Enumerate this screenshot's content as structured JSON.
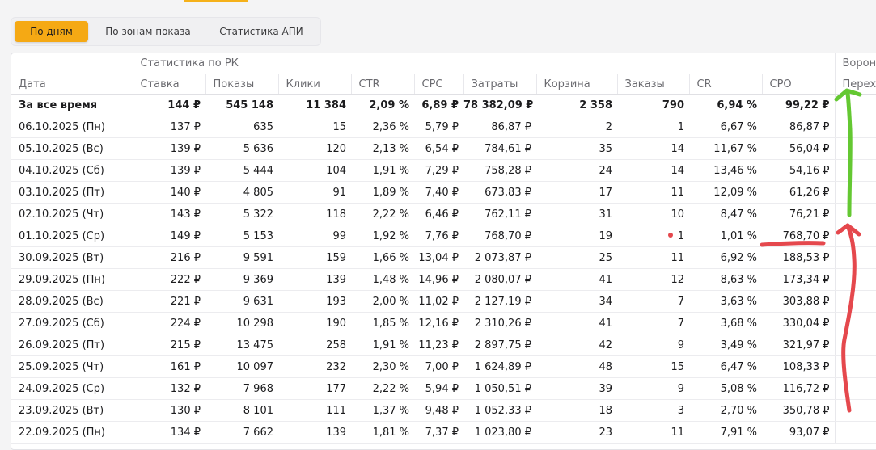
{
  "tabs": [
    {
      "label": "По дням",
      "active": true
    },
    {
      "label": "По зонам показа",
      "active": false
    },
    {
      "label": "Статистика АПИ",
      "active": false
    }
  ],
  "groups": {
    "stats": "Статистика по РК",
    "funnel": "Ворон"
  },
  "columns": [
    "Дата",
    "Ставка",
    "Показы",
    "Клики",
    "CTR",
    "CPC",
    "Затраты",
    "Корзина",
    "Заказы",
    "CR",
    "CPO",
    "Перех"
  ],
  "rows": [
    [
      "За все время",
      "144 ₽",
      "545 148",
      "11 384",
      "2,09 %",
      "6,89 ₽",
      "78 382,09 ₽",
      "2 358",
      "790",
      "6,94 %",
      "99,22 ₽"
    ],
    [
      "06.10.2025 (Пн)",
      "137 ₽",
      "635",
      "15",
      "2,36 %",
      "5,79 ₽",
      "86,87 ₽",
      "2",
      "1",
      "6,67 %",
      "86,87 ₽"
    ],
    [
      "05.10.2025 (Вс)",
      "139 ₽",
      "5 636",
      "120",
      "2,13 %",
      "6,54 ₽",
      "784,61 ₽",
      "35",
      "14",
      "11,67 %",
      "56,04 ₽"
    ],
    [
      "04.10.2025 (Сб)",
      "139 ₽",
      "5 444",
      "104",
      "1,91 %",
      "7,29 ₽",
      "758,28 ₽",
      "24",
      "14",
      "13,46 %",
      "54,16 ₽"
    ],
    [
      "03.10.2025 (Пт)",
      "140 ₽",
      "4 805",
      "91",
      "1,89 %",
      "7,40 ₽",
      "673,83 ₽",
      "17",
      "11",
      "12,09 %",
      "61,26 ₽"
    ],
    [
      "02.10.2025 (Чт)",
      "143 ₽",
      "5 322",
      "118",
      "2,22 %",
      "6,46 ₽",
      "762,11 ₽",
      "31",
      "10",
      "8,47 %",
      "76,21 ₽"
    ],
    [
      "01.10.2025 (Ср)",
      "149 ₽",
      "5 153",
      "99",
      "1,92 %",
      "7,76 ₽",
      "768,70 ₽",
      "19",
      "1",
      "1,01 %",
      "768,70 ₽"
    ],
    [
      "30.09.2025 (Вт)",
      "216 ₽",
      "9 591",
      "159",
      "1,66 %",
      "13,04 ₽",
      "2 073,87 ₽",
      "25",
      "11",
      "6,92 %",
      "188,53 ₽"
    ],
    [
      "29.09.2025 (Пн)",
      "222 ₽",
      "9 369",
      "139",
      "1,48 %",
      "14,96 ₽",
      "2 080,07 ₽",
      "41",
      "12",
      "8,63 %",
      "173,34 ₽"
    ],
    [
      "28.09.2025 (Вс)",
      "221 ₽",
      "9 631",
      "193",
      "2,00 %",
      "11,02 ₽",
      "2 127,19 ₽",
      "34",
      "7",
      "3,63 %",
      "303,88 ₽"
    ],
    [
      "27.09.2025 (Сб)",
      "224 ₽",
      "10 298",
      "190",
      "1,85 %",
      "12,16 ₽",
      "2 310,26 ₽",
      "41",
      "7",
      "3,68 %",
      "330,04 ₽"
    ],
    [
      "26.09.2025 (Пт)",
      "215 ₽",
      "13 475",
      "258",
      "1,91 %",
      "11,23 ₽",
      "2 897,75 ₽",
      "42",
      "9",
      "3,49 %",
      "321,97 ₽"
    ],
    [
      "25.09.2025 (Чт)",
      "161 ₽",
      "10 097",
      "232",
      "2,30 %",
      "7,00 ₽",
      "1 624,89 ₽",
      "48",
      "15",
      "6,47 %",
      "108,33 ₽"
    ],
    [
      "24.09.2025 (Ср)",
      "132 ₽",
      "7 968",
      "177",
      "2,22 %",
      "5,94 ₽",
      "1 050,51 ₽",
      "39",
      "9",
      "5,08 %",
      "116,72 ₽"
    ],
    [
      "23.09.2025 (Вт)",
      "130 ₽",
      "8 101",
      "111",
      "1,37 %",
      "9,48 ₽",
      "1 052,33 ₽",
      "18",
      "3",
      "2,70 %",
      "350,78 ₽"
    ],
    [
      "22.09.2025 (Пн)",
      "134 ₽",
      "7 662",
      "139",
      "1,81 %",
      "7,37 ₽",
      "1 023,80 ₽",
      "23",
      "11",
      "7,91 %",
      "93,07 ₽"
    ]
  ],
  "highlight_row": 6,
  "colors": {
    "accent": "#f5a914",
    "annotation_red": "#e5484d",
    "annotation_green": "#64c832"
  },
  "annotations": [
    {
      "kind": "underline",
      "color": "annotation_red"
    },
    {
      "kind": "arrow-up",
      "color": "annotation_red"
    },
    {
      "kind": "arrow-up",
      "color": "annotation_green"
    }
  ]
}
